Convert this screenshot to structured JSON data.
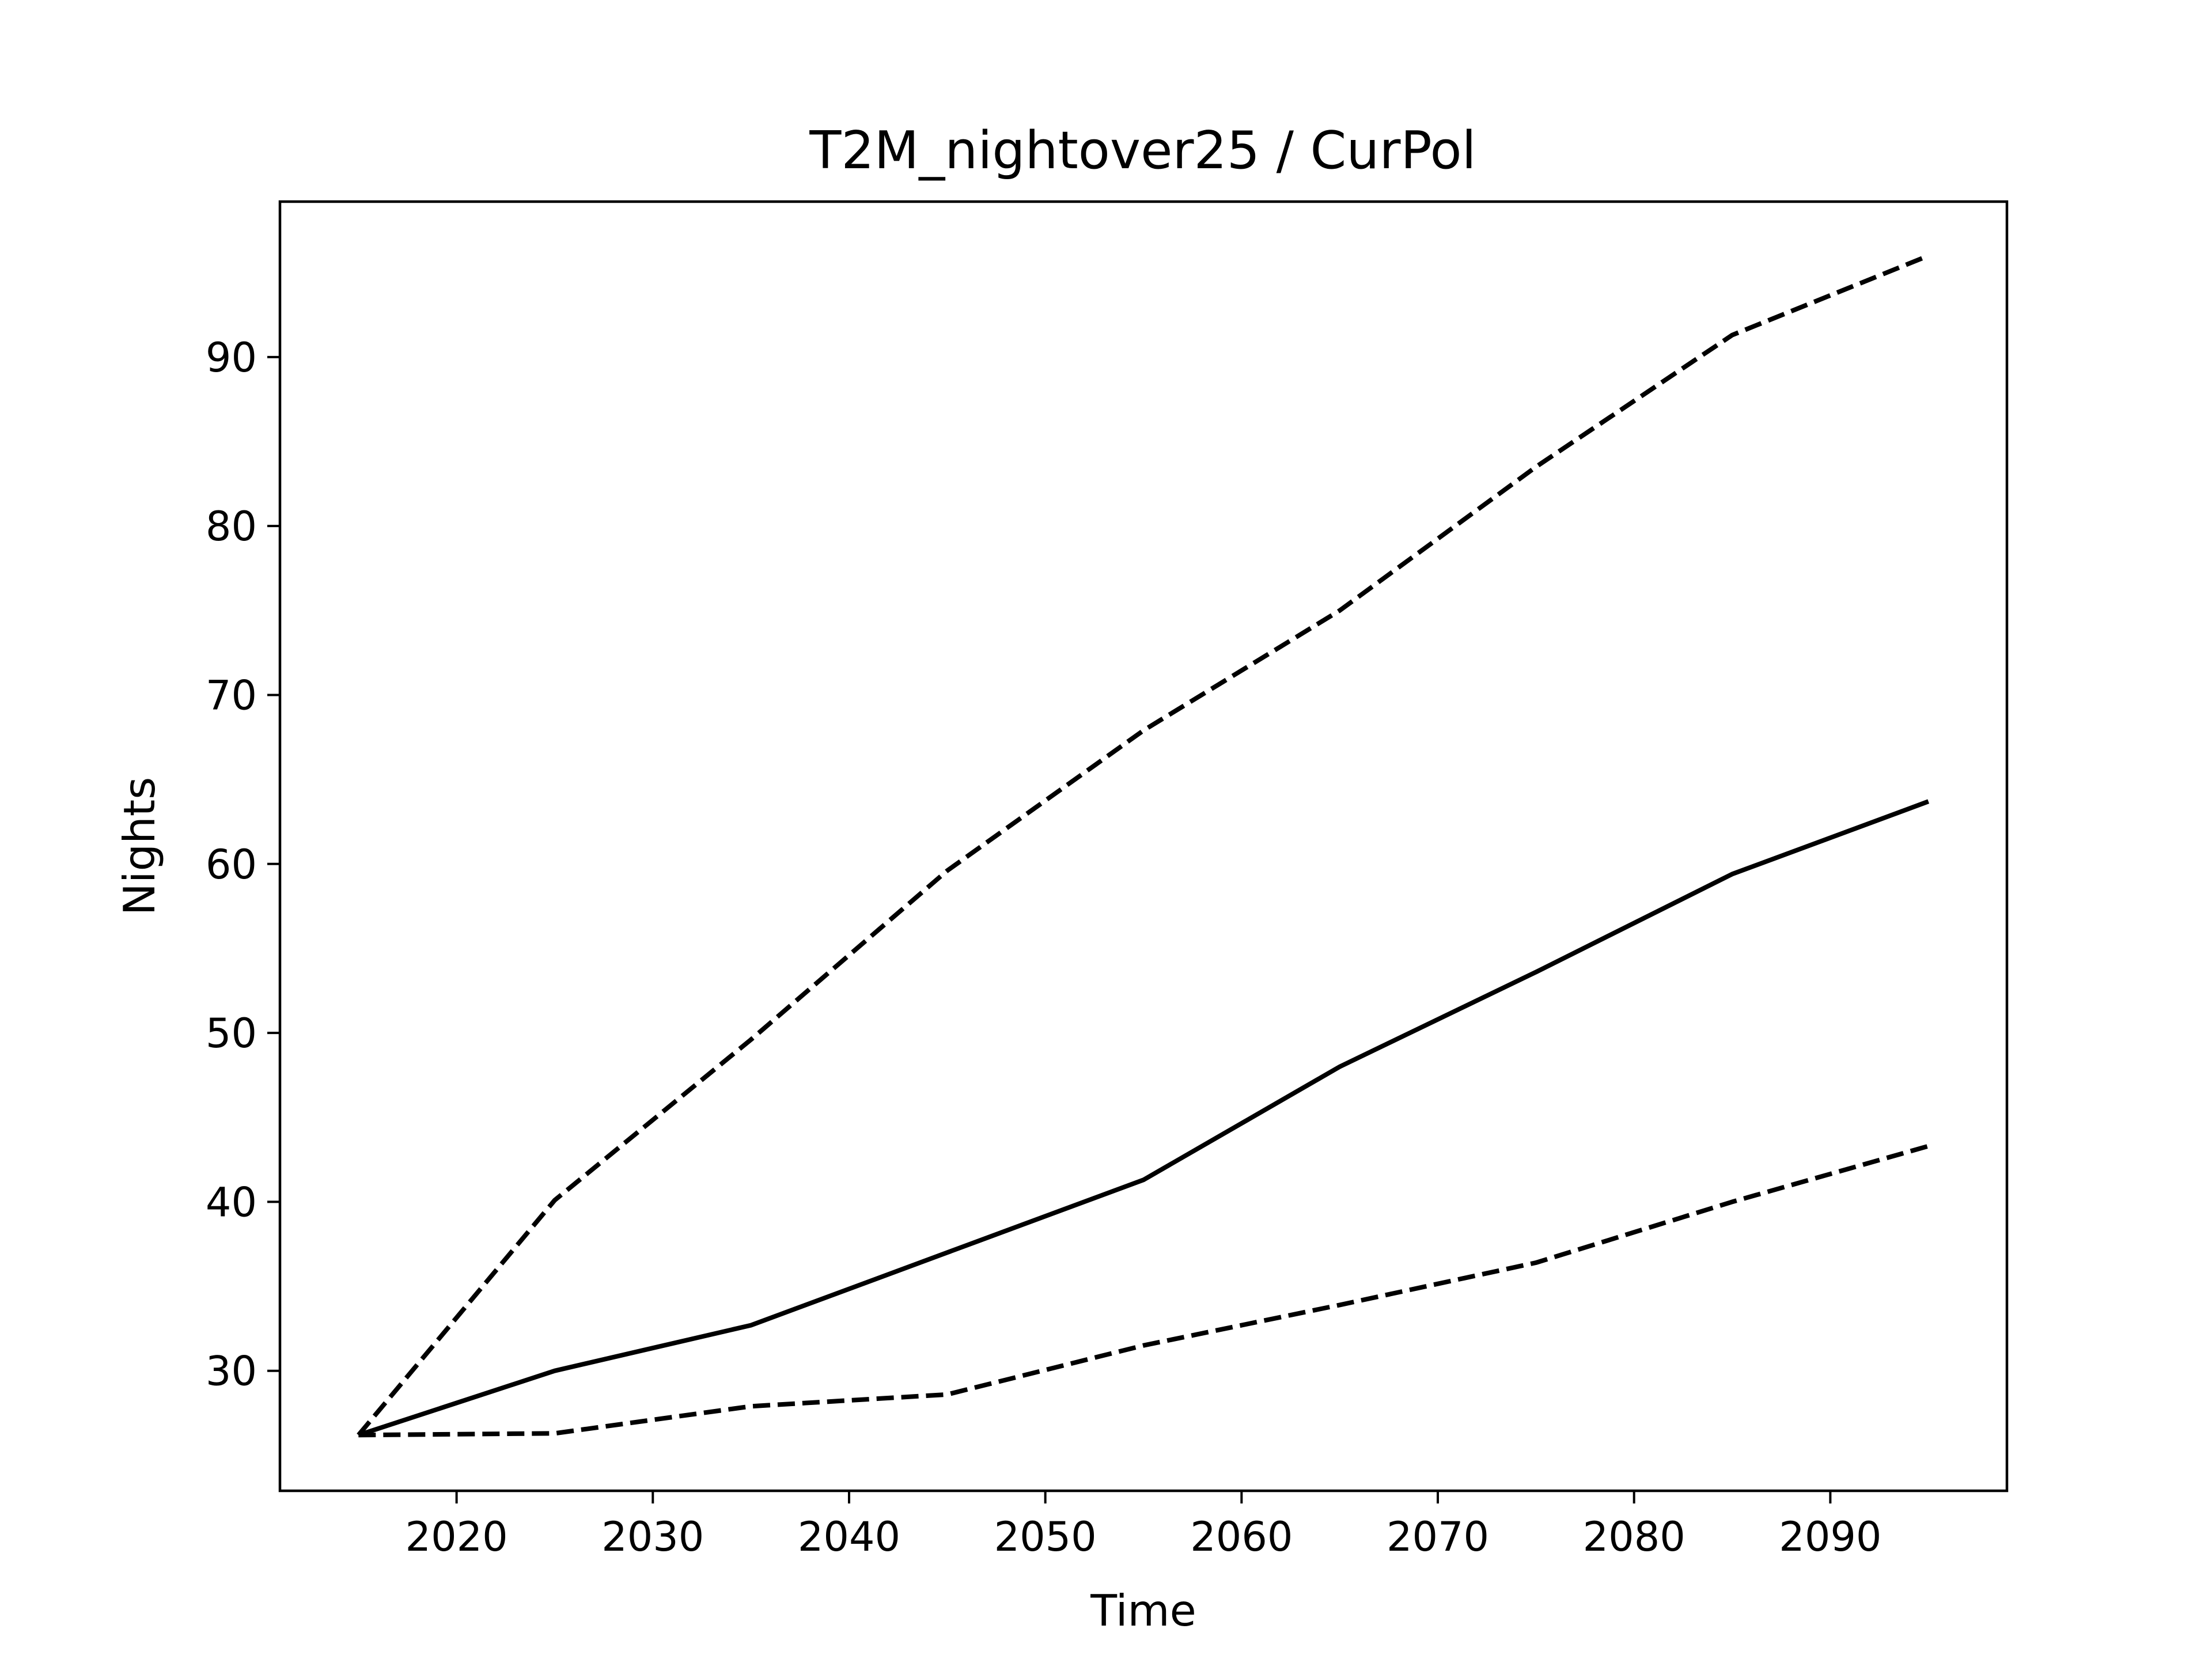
{
  "chart_data": {
    "type": "line",
    "title": "T2M_nightover25 / CurPol",
    "xlabel": "Time",
    "ylabel": "Nights",
    "xlim": [
      2011,
      2099
    ],
    "ylim": [
      22.9,
      99.2
    ],
    "xticks": [
      2020,
      2030,
      2040,
      2050,
      2060,
      2070,
      2080,
      2090
    ],
    "yticks": [
      30,
      40,
      50,
      60,
      70,
      80,
      90
    ],
    "grid": false,
    "legend": "none",
    "x": [
      2015,
      2025,
      2035,
      2045,
      2055,
      2065,
      2075,
      2085,
      2095
    ],
    "series": [
      {
        "style": "dashed",
        "color": "#000000",
        "values": [
          26.2,
          40.1,
          49.6,
          59.6,
          67.9,
          75.0,
          83.5,
          91.3,
          96.0
        ]
      },
      {
        "style": "solid",
        "color": "#000000",
        "values": [
          26.2,
          30.0,
          32.7,
          37.0,
          41.3,
          48.0,
          53.6,
          59.4,
          63.7
        ]
      },
      {
        "style": "dashed",
        "color": "#000000",
        "values": [
          26.2,
          26.3,
          27.9,
          28.6,
          31.5,
          33.9,
          36.4,
          40.0,
          43.3
        ]
      }
    ]
  }
}
